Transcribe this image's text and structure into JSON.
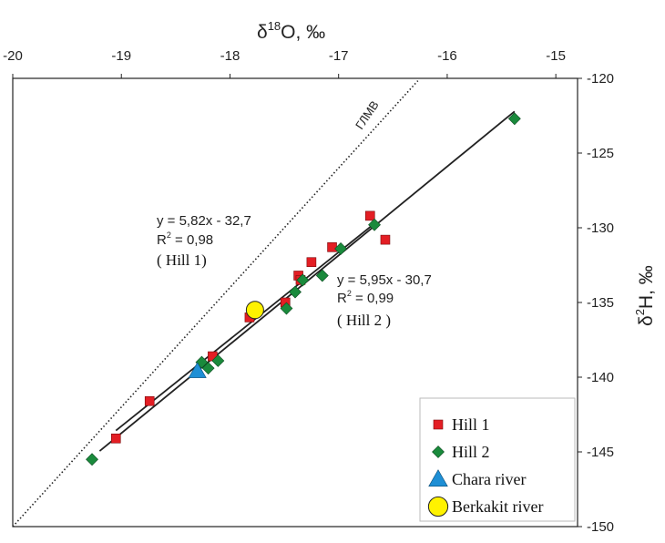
{
  "chart_data": {
    "type": "scatter",
    "xlabel_main": "δ",
    "xlabel_sup": "18",
    "xlabel_rest": "O, ‰",
    "ylabel_main": "δ",
    "ylabel_sup": "2",
    "ylabel_rest": "H, ‰",
    "xlim": [
      -20,
      -14.8
    ],
    "ylim": [
      -150,
      -120
    ],
    "x_ticks": [
      -20,
      -19,
      -18,
      -17,
      -16,
      -15
    ],
    "x_tick_labels": [
      "-20",
      "-19",
      "-18",
      "-17",
      "-16",
      "-15"
    ],
    "y_ticks": [
      -120,
      -125,
      -130,
      -135,
      -140,
      -145,
      -150
    ],
    "y_tick_labels": [
      "-120",
      "-125",
      "-130",
      "-135",
      "-140",
      "-145",
      "-150"
    ],
    "x_axis_position": "top",
    "y_axis_position": "right",
    "grid": false,
    "legend_position": "bottom-right",
    "series": [
      {
        "name": "Hill 1",
        "marker": "square",
        "color": "#e31e24",
        "points": [
          [
            -19.05,
            -144.1
          ],
          [
            -18.74,
            -141.6
          ],
          [
            -18.16,
            -138.6
          ],
          [
            -17.82,
            -136.0
          ],
          [
            -17.49,
            -135.0
          ],
          [
            -17.37,
            -133.2
          ],
          [
            -17.35,
            -133.5
          ],
          [
            -17.25,
            -132.3
          ],
          [
            -17.06,
            -131.3
          ],
          [
            -16.71,
            -129.2
          ],
          [
            -16.57,
            -130.8
          ]
        ]
      },
      {
        "name": "Hill 2",
        "marker": "diamond",
        "color": "#1a8a3c",
        "points": [
          [
            -19.27,
            -145.5
          ],
          [
            -18.26,
            -139.0
          ],
          [
            -18.2,
            -139.4
          ],
          [
            -18.11,
            -138.9
          ],
          [
            -17.48,
            -135.4
          ],
          [
            -17.4,
            -134.3
          ],
          [
            -17.33,
            -133.5
          ],
          [
            -17.15,
            -133.2
          ],
          [
            -16.98,
            -131.4
          ],
          [
            -16.67,
            -129.8
          ],
          [
            -15.38,
            -122.7
          ]
        ]
      },
      {
        "name": "Chara river",
        "marker": "triangle",
        "color": "#1e8fd5",
        "points": [
          [
            -18.3,
            -139.6
          ]
        ]
      },
      {
        "name": "Berkakit river",
        "marker": "circle",
        "color": "#fff200",
        "points": [
          [
            -17.77,
            -135.5
          ]
        ]
      }
    ],
    "regression_lines": [
      {
        "name": "Hill 1",
        "x": [
          -19.05,
          -16.7
        ]
      },
      {
        "name": "Hill 2",
        "x": [
          -19.2,
          -15.38
        ]
      }
    ],
    "annotations": {
      "hill1_eq": "y = 5,82x - 32,7",
      "hill1_r2_main": "R",
      "hill1_r2_sup": "2",
      "hill1_r2_rest": " = 0,98",
      "hill1_label": "( Hill 1)",
      "hill2_eq": "y = 5,95x - 30,7",
      "hill2_r2_main": "R",
      "hill2_r2_sup": "2",
      "hill2_r2_rest": " = 0,99",
      "hill2_label": "( Hill 2 )",
      "gmwl_label": "ГЛМВ"
    },
    "gmwl": {
      "x": [
        -20,
        -16.27
      ]
    },
    "legend": [
      {
        "label": "Hill 1",
        "marker": "square",
        "color": "#e31e24"
      },
      {
        "label": "Hill 2",
        "marker": "diamond",
        "color": "#1a8a3c"
      },
      {
        "label": "Chara river",
        "marker": "triangle",
        "color": "#1e8fd5"
      },
      {
        "label": "Berkakit river",
        "marker": "circle",
        "color": "#fff200"
      }
    ]
  }
}
